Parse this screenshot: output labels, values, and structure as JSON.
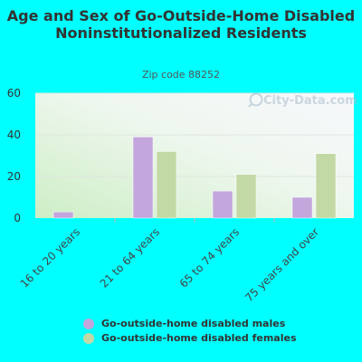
{
  "chart_data": {
    "type": "bar",
    "title": "Age and Sex of Go-Outside-Home Disabled Noninstitutionalized Residents",
    "subtitle": "Zip code 88252",
    "categories": [
      "16 to 20 years",
      "21 to 64 years",
      "65 to 74 years",
      "75 years and over"
    ],
    "series": [
      {
        "name": "Go-outside-home disabled males",
        "values": [
          3,
          39,
          13,
          10
        ],
        "color": "#c2a6dc"
      },
      {
        "name": "Go-outside-home disabled females",
        "values": [
          0,
          32,
          21,
          31
        ],
        "color": "#c3d9a5"
      }
    ],
    "ylim": [
      0,
      60
    ],
    "yticks": [
      0,
      20,
      40,
      60
    ],
    "grid": true,
    "legend_position": "bottom",
    "watermark": "City-Data.com"
  }
}
